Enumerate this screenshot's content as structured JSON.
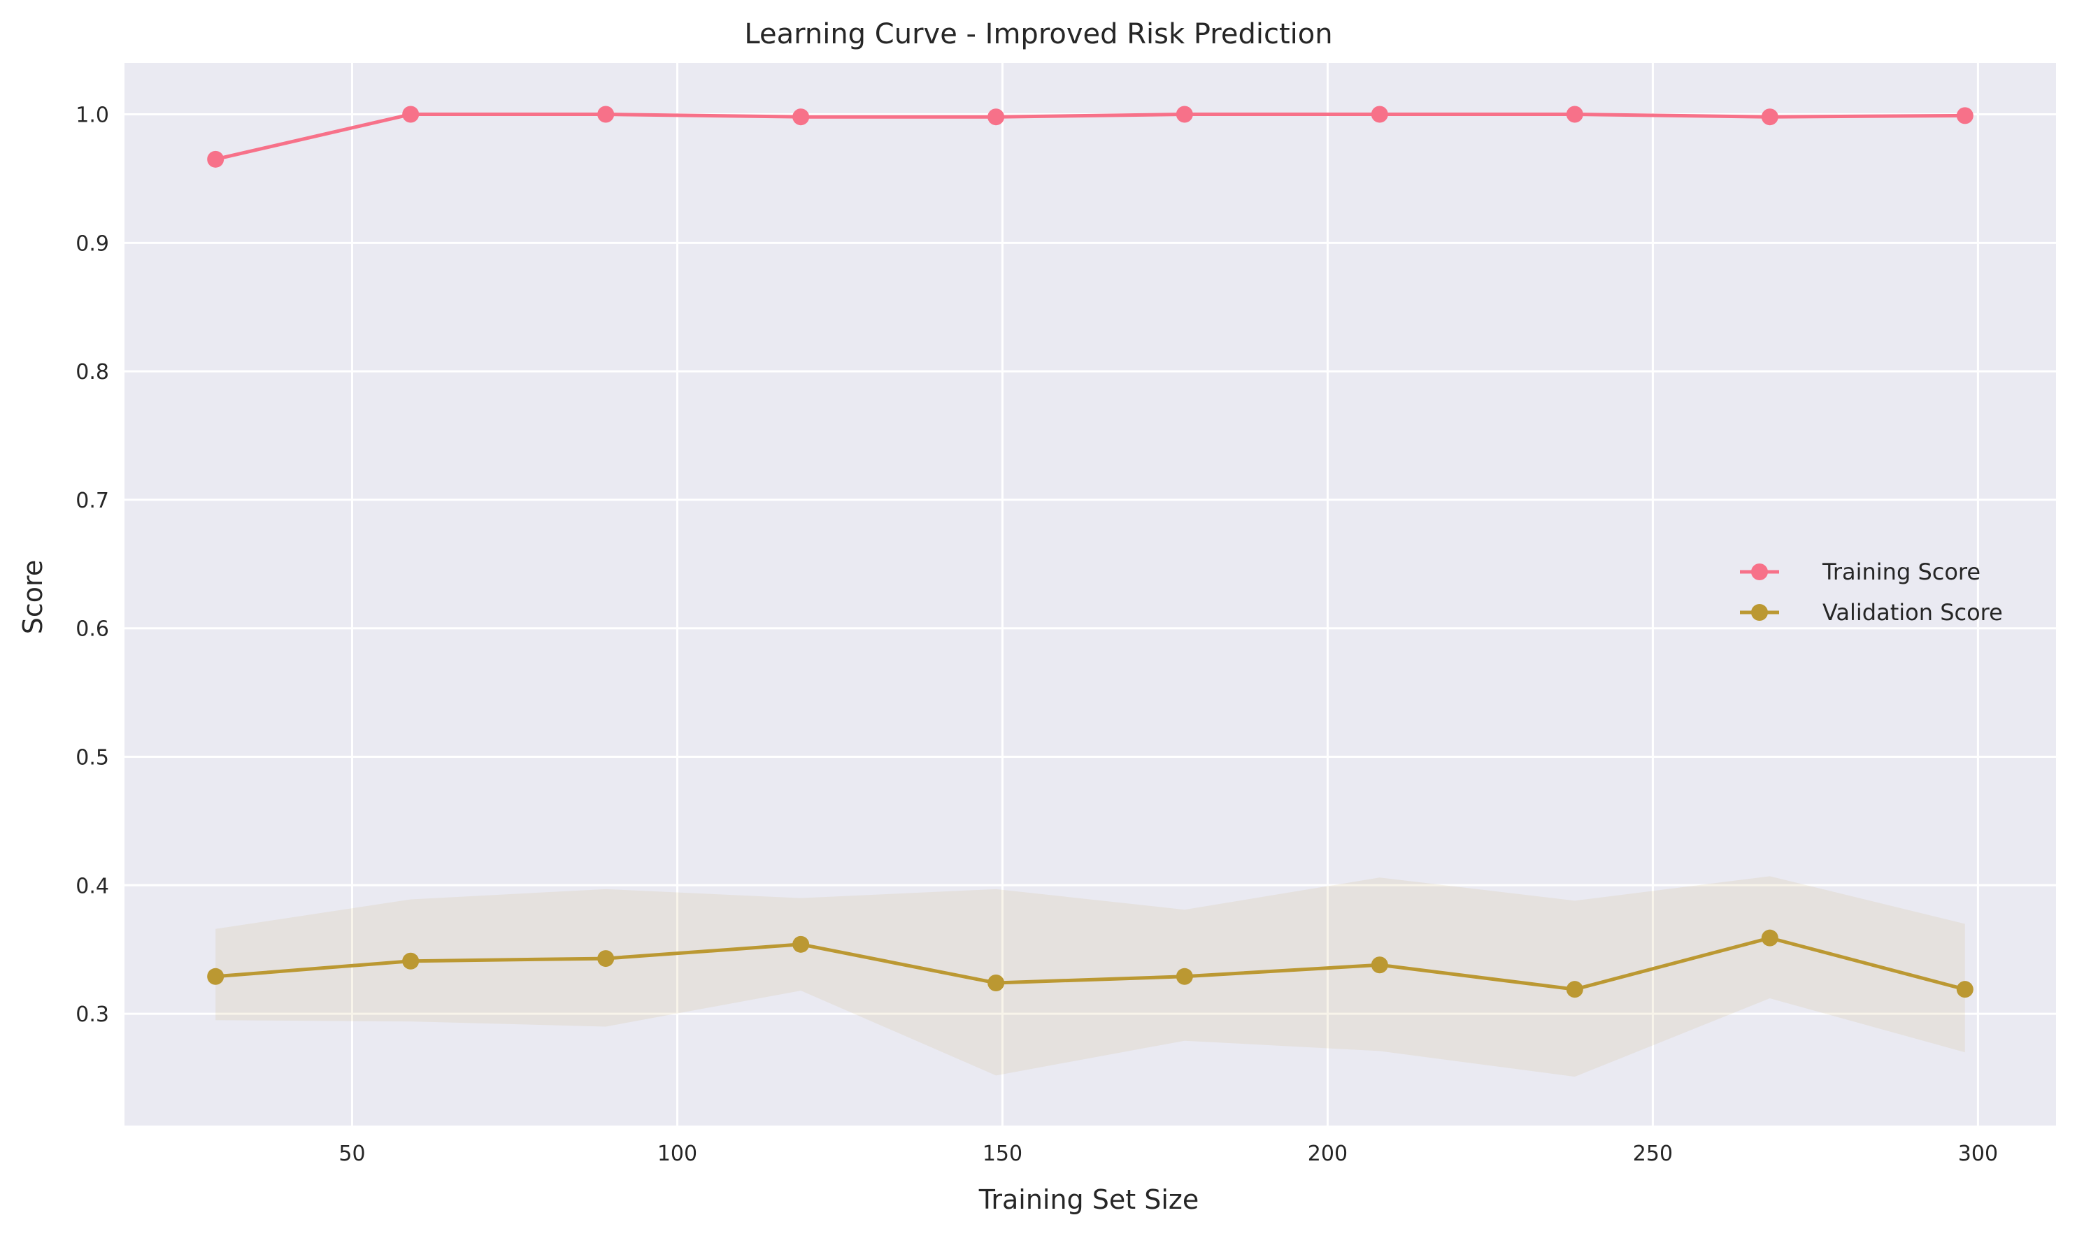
{
  "chart_data": {
    "type": "line",
    "title": "Learning Curve - Improved Risk Prediction",
    "xlabel": "Training Set Size",
    "ylabel": "Score",
    "xlim": [
      15,
      312
    ],
    "ylim": [
      0.213,
      1.04
    ],
    "xticks": [
      50,
      100,
      150,
      200,
      250,
      300
    ],
    "yticks": [
      0.3,
      0.4,
      0.5,
      0.6,
      0.7,
      0.8,
      0.9,
      1.0
    ],
    "grid": true,
    "legend_position": "center-right",
    "x": [
      29,
      59,
      89,
      119,
      149,
      178,
      208,
      238,
      268,
      298
    ],
    "series": [
      {
        "name": "Training Score",
        "color": "#f77189",
        "values": [
          0.965,
          1.0,
          1.0,
          0.998,
          0.998,
          1.0,
          1.0,
          1.0,
          0.998,
          0.999
        ]
      },
      {
        "name": "Validation Score",
        "color": "#bb9832",
        "values": [
          0.329,
          0.341,
          0.343,
          0.354,
          0.324,
          0.329,
          0.338,
          0.319,
          0.359,
          0.319
        ],
        "band_lower": [
          0.295,
          0.294,
          0.29,
          0.318,
          0.252,
          0.279,
          0.271,
          0.251,
          0.312,
          0.27
        ],
        "band_upper": [
          0.366,
          0.389,
          0.397,
          0.39,
          0.397,
          0.381,
          0.406,
          0.388,
          0.407,
          0.37
        ]
      }
    ]
  }
}
